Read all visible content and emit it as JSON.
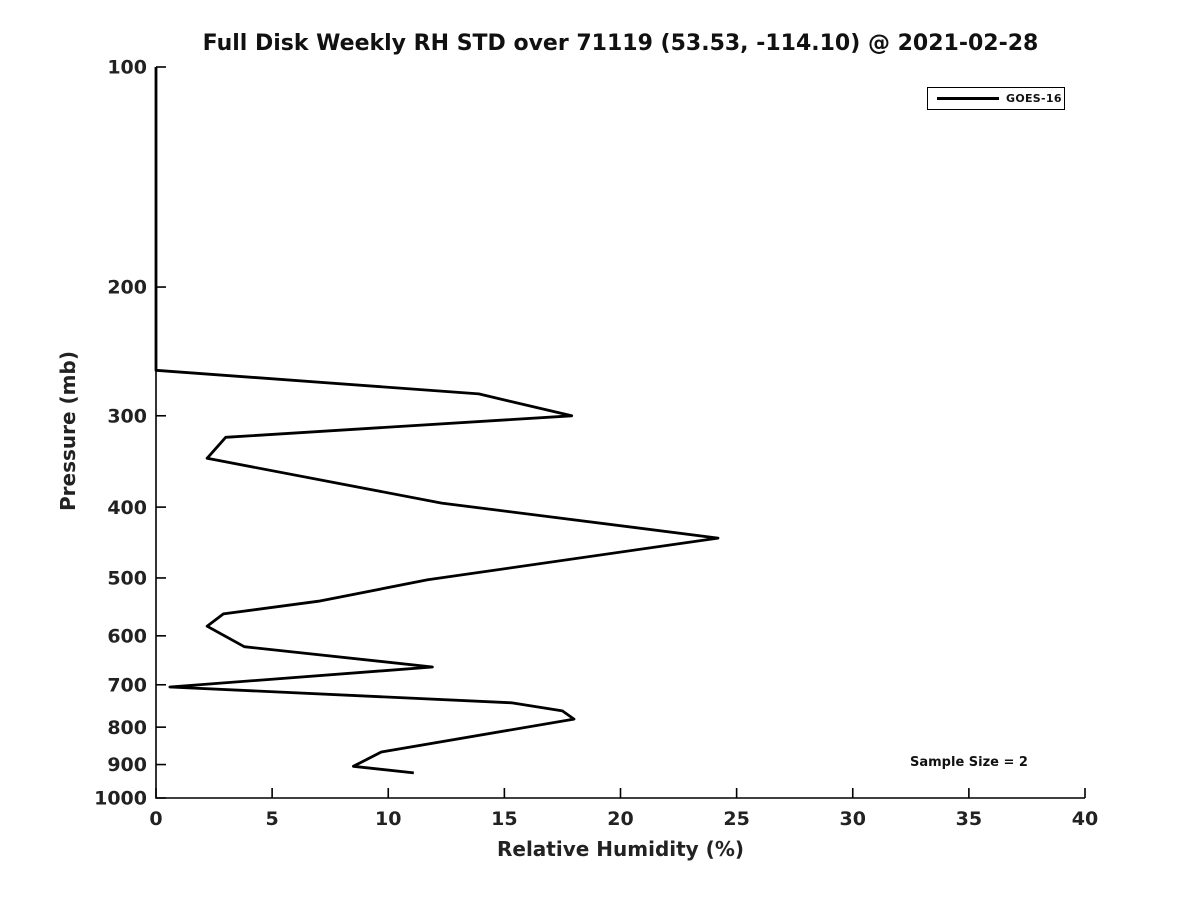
{
  "figure": {
    "background": "#ffffff",
    "text_color": "#111111",
    "line_color": "#000000"
  },
  "chart_data": {
    "type": "line",
    "title": "Full Disk Weekly RH STD over 71119 (53.53, -114.10) @ 2021-02-28",
    "xlabel": "Relative Humidity (%)",
    "ylabel": "Pressure (mb)",
    "xlim": [
      0,
      40
    ],
    "ylim": [
      100,
      1000
    ],
    "y_scale": "log",
    "y_inverted": true,
    "grid": false,
    "x_ticks": [
      0,
      5,
      10,
      15,
      20,
      25,
      30,
      35,
      40
    ],
    "y_ticks": [
      100,
      200,
      300,
      400,
      500,
      600,
      700,
      800,
      900,
      1000
    ],
    "legend": {
      "position": "upper right",
      "entries": [
        {
          "label": "GOES-16",
          "color": "#000000"
        }
      ]
    },
    "annotation": "Sample Size = 2",
    "series": [
      {
        "name": "GOES-16",
        "color": "#000000",
        "line_width": 2.8,
        "points_rh_pressure": [
          [
            0.0,
            100
          ],
          [
            0.0,
            260
          ],
          [
            13.9,
            280
          ],
          [
            17.9,
            300
          ],
          [
            3.0,
            321
          ],
          [
            2.2,
            343
          ],
          [
            12.3,
            395
          ],
          [
            24.2,
            441
          ],
          [
            11.7,
            503
          ],
          [
            7.0,
            538
          ],
          [
            2.9,
            560
          ],
          [
            2.2,
            582
          ],
          [
            3.8,
            621
          ],
          [
            11.9,
            662
          ],
          [
            0.6,
            705
          ],
          [
            15.3,
            741
          ],
          [
            17.5,
            760
          ],
          [
            18.0,
            780
          ],
          [
            9.7,
            865
          ],
          [
            8.5,
            905
          ],
          [
            11.1,
            924
          ]
        ]
      }
    ]
  }
}
